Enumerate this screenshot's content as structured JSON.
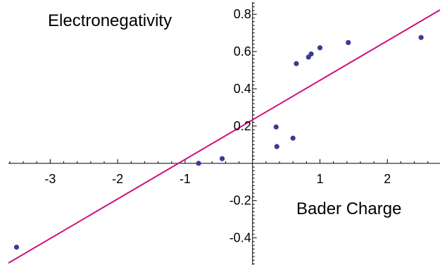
{
  "chart_data": {
    "type": "scatter",
    "xlabel": "Bader Charge",
    "ylabel": "Electronegativity",
    "xlim": [
      -3.62,
      2.78
    ],
    "ylim": [
      -0.545,
      0.865
    ],
    "xticks": [
      -3,
      -2,
      -1,
      1,
      2
    ],
    "yticks": [
      -0.4,
      -0.2,
      0.2,
      0.4,
      0.6,
      0.8
    ],
    "x_tick_labels": [
      "-3",
      "-2",
      "-1",
      "1",
      "2"
    ],
    "y_tick_labels": [
      "-0.4",
      "-0.2",
      "0.2",
      "0.4",
      "0.6",
      "0.8"
    ],
    "grid": false,
    "series": [
      {
        "type": "scatter",
        "color": "#3b3b93",
        "points": [
          {
            "x": -3.5,
            "y": -0.45
          },
          {
            "x": -0.8,
            "y": 0.0
          },
          {
            "x": -0.45,
            "y": 0.025
          },
          {
            "x": 0.35,
            "y": 0.195
          },
          {
            "x": 0.36,
            "y": 0.09
          },
          {
            "x": 0.6,
            "y": 0.135
          },
          {
            "x": 0.65,
            "y": 0.535
          },
          {
            "x": 0.83,
            "y": 0.57
          },
          {
            "x": 0.87,
            "y": 0.587
          },
          {
            "x": 1.0,
            "y": 0.62
          },
          {
            "x": 1.42,
            "y": 0.648
          },
          {
            "x": 2.5,
            "y": 0.675
          }
        ]
      },
      {
        "type": "line",
        "color": "#d0117b",
        "points": [
          {
            "x": -3.62,
            "y": -0.535
          },
          {
            "x": 2.78,
            "y": 0.823
          }
        ]
      }
    ]
  }
}
